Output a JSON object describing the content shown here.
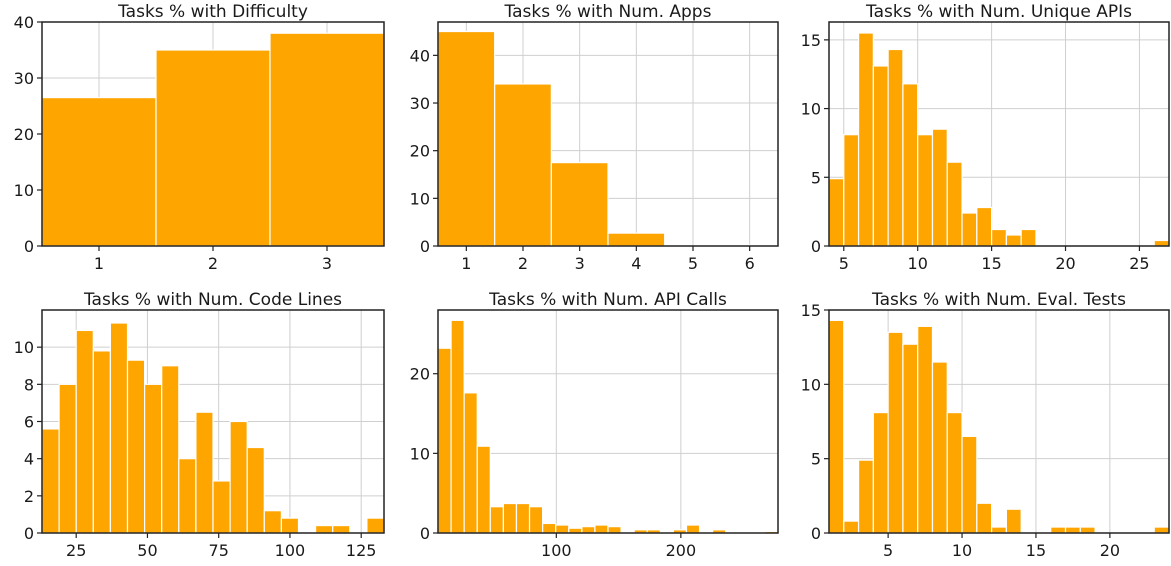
{
  "figure": {
    "bar_color": "#FFA500",
    "bar_edge_color": "#ffffff",
    "grid": true,
    "layout": "2x3"
  },
  "chart_data": [
    {
      "type": "bar",
      "title": "Tasks % with Difficulty",
      "bins": [
        {
          "x0": 0.5,
          "x1": 1.5,
          "y": 26.5
        },
        {
          "x0": 1.5,
          "x1": 2.5,
          "y": 35.0
        },
        {
          "x0": 2.5,
          "x1": 3.5,
          "y": 38.0
        }
      ],
      "xlim": [
        0.5,
        3.5
      ],
      "ylim": [
        0,
        40
      ],
      "xticks": [
        1,
        2,
        3
      ],
      "yticks": [
        0,
        10,
        20,
        30,
        40
      ],
      "xlabel": "",
      "ylabel": ""
    },
    {
      "type": "bar",
      "title": "Tasks % with Num. Apps",
      "bins": [
        {
          "x0": 0.5,
          "x1": 1.5,
          "y": 45.0
        },
        {
          "x0": 1.5,
          "x1": 2.5,
          "y": 34.0
        },
        {
          "x0": 2.5,
          "x1": 3.5,
          "y": 17.5
        },
        {
          "x0": 3.5,
          "x1": 4.5,
          "y": 2.7
        },
        {
          "x0": 4.5,
          "x1": 5.5,
          "y": 0
        },
        {
          "x0": 5.5,
          "x1": 6.5,
          "y": 0.2
        }
      ],
      "xlim": [
        0.5,
        6.5
      ],
      "ylim": [
        0,
        47
      ],
      "xticks": [
        1,
        2,
        3,
        4,
        5,
        6
      ],
      "yticks": [
        0,
        10,
        20,
        30,
        40
      ],
      "xlabel": "",
      "ylabel": ""
    },
    {
      "type": "bar",
      "title": "Tasks % with Num. Unique APIs",
      "bins": [
        {
          "x0": 4.0,
          "x1": 5.0,
          "y": 4.9
        },
        {
          "x0": 5.0,
          "x1": 6.0,
          "y": 8.1
        },
        {
          "x0": 6.0,
          "x1": 7.0,
          "y": 15.5
        },
        {
          "x0": 7.0,
          "x1": 8.0,
          "y": 13.1
        },
        {
          "x0": 8.0,
          "x1": 9.0,
          "y": 14.3
        },
        {
          "x0": 9.0,
          "x1": 10.0,
          "y": 11.8
        },
        {
          "x0": 10.0,
          "x1": 11.0,
          "y": 8.1
        },
        {
          "x0": 11.0,
          "x1": 12.0,
          "y": 8.5
        },
        {
          "x0": 12.0,
          "x1": 13.0,
          "y": 6.1
        },
        {
          "x0": 13.0,
          "x1": 14.0,
          "y": 2.4
        },
        {
          "x0": 14.0,
          "x1": 15.0,
          "y": 2.8
        },
        {
          "x0": 15.0,
          "x1": 16.0,
          "y": 1.2
        },
        {
          "x0": 16.0,
          "x1": 17.0,
          "y": 0.8
        },
        {
          "x0": 17.0,
          "x1": 18.0,
          "y": 1.2
        },
        {
          "x0": 26.0,
          "x1": 27.0,
          "y": 0.4
        }
      ],
      "xlim": [
        4.0,
        27.0
      ],
      "ylim": [
        0,
        16.3
      ],
      "xticks": [
        5,
        10,
        15,
        20,
        25
      ],
      "yticks": [
        0,
        5,
        10,
        15
      ],
      "xlabel": "",
      "ylabel": ""
    },
    {
      "type": "bar",
      "title": "Tasks % with Num. Code Lines",
      "bins": [
        {
          "x0": 13.0,
          "x1": 19.0,
          "y": 5.6
        },
        {
          "x0": 19.0,
          "x1": 25.0,
          "y": 8.0
        },
        {
          "x0": 25.0,
          "x1": 31.0,
          "y": 10.9
        },
        {
          "x0": 31.0,
          "x1": 37.0,
          "y": 9.8
        },
        {
          "x0": 37.0,
          "x1": 43.0,
          "y": 11.3
        },
        {
          "x0": 43.0,
          "x1": 49.0,
          "y": 9.3
        },
        {
          "x0": 49.0,
          "x1": 55.0,
          "y": 8.0
        },
        {
          "x0": 55.0,
          "x1": 61.0,
          "y": 9.0
        },
        {
          "x0": 61.0,
          "x1": 67.0,
          "y": 4.0
        },
        {
          "x0": 67.0,
          "x1": 73.0,
          "y": 6.5
        },
        {
          "x0": 73.0,
          "x1": 79.0,
          "y": 2.8
        },
        {
          "x0": 79.0,
          "x1": 85.0,
          "y": 6.0
        },
        {
          "x0": 85.0,
          "x1": 91.0,
          "y": 4.6
        },
        {
          "x0": 91.0,
          "x1": 97.0,
          "y": 1.2
        },
        {
          "x0": 97.0,
          "x1": 103.0,
          "y": 0.8
        },
        {
          "x0": 109.0,
          "x1": 115.0,
          "y": 0.4
        },
        {
          "x0": 115.0,
          "x1": 121.0,
          "y": 0.4
        },
        {
          "x0": 127.0,
          "x1": 133.0,
          "y": 0.8
        }
      ],
      "xlim": [
        13.0,
        133.0
      ],
      "ylim": [
        0,
        12.0
      ],
      "xticks": [
        25,
        50,
        75,
        100,
        125
      ],
      "yticks": [
        0,
        2,
        4,
        6,
        8,
        10
      ],
      "xlabel": "",
      "ylabel": ""
    },
    {
      "type": "bar",
      "title": "Tasks % with Num. API Calls",
      "bins": [
        {
          "x0": 5.0,
          "x1": 15.5,
          "y": 23.2
        },
        {
          "x0": 15.5,
          "x1": 26.0,
          "y": 26.7
        },
        {
          "x0": 26.0,
          "x1": 36.5,
          "y": 17.6
        },
        {
          "x0": 36.5,
          "x1": 47.0,
          "y": 10.9
        },
        {
          "x0": 47.0,
          "x1": 57.5,
          "y": 3.3
        },
        {
          "x0": 57.5,
          "x1": 68.0,
          "y": 3.7
        },
        {
          "x0": 68.0,
          "x1": 78.5,
          "y": 3.7
        },
        {
          "x0": 78.5,
          "x1": 89.0,
          "y": 3.3
        },
        {
          "x0": 89.0,
          "x1": 99.5,
          "y": 1.2
        },
        {
          "x0": 99.5,
          "x1": 110.0,
          "y": 1.0
        },
        {
          "x0": 110.0,
          "x1": 120.5,
          "y": 0.6
        },
        {
          "x0": 120.5,
          "x1": 131.0,
          "y": 0.8
        },
        {
          "x0": 131.0,
          "x1": 141.5,
          "y": 1.0
        },
        {
          "x0": 141.5,
          "x1": 152.0,
          "y": 0.8
        },
        {
          "x0": 162.5,
          "x1": 173.0,
          "y": 0.4
        },
        {
          "x0": 173.0,
          "x1": 183.5,
          "y": 0.4
        },
        {
          "x0": 194.0,
          "x1": 204.5,
          "y": 0.4
        },
        {
          "x0": 204.5,
          "x1": 215.0,
          "y": 1.0
        },
        {
          "x0": 225.5,
          "x1": 236.0,
          "y": 0.4
        },
        {
          "x0": 267.5,
          "x1": 278.0,
          "y": 0.2
        }
      ],
      "xlim": [
        5.0,
        278.0
      ],
      "ylim": [
        0,
        28.0
      ],
      "xticks": [
        100,
        200
      ],
      "yticks": [
        0,
        10,
        20
      ],
      "xlabel": "",
      "ylabel": ""
    },
    {
      "type": "bar",
      "title": "Tasks % with Num. Eval. Tests",
      "bins": [
        {
          "x0": 1.0,
          "x1": 2.0,
          "y": 14.3
        },
        {
          "x0": 2.0,
          "x1": 3.0,
          "y": 0.8
        },
        {
          "x0": 3.0,
          "x1": 4.0,
          "y": 4.9
        },
        {
          "x0": 4.0,
          "x1": 5.0,
          "y": 8.1
        },
        {
          "x0": 5.0,
          "x1": 6.0,
          "y": 13.5
        },
        {
          "x0": 6.0,
          "x1": 7.0,
          "y": 12.7
        },
        {
          "x0": 7.0,
          "x1": 8.0,
          "y": 13.9
        },
        {
          "x0": 8.0,
          "x1": 9.0,
          "y": 11.5
        },
        {
          "x0": 9.0,
          "x1": 10.0,
          "y": 8.1
        },
        {
          "x0": 10.0,
          "x1": 11.0,
          "y": 6.5
        },
        {
          "x0": 11.0,
          "x1": 12.0,
          "y": 2.0
        },
        {
          "x0": 12.0,
          "x1": 13.0,
          "y": 0.4
        },
        {
          "x0": 13.0,
          "x1": 14.0,
          "y": 1.6
        },
        {
          "x0": 16.0,
          "x1": 17.0,
          "y": 0.4
        },
        {
          "x0": 17.0,
          "x1": 18.0,
          "y": 0.4
        },
        {
          "x0": 18.0,
          "x1": 19.0,
          "y": 0.4
        },
        {
          "x0": 23.0,
          "x1": 24.0,
          "y": 0.4
        }
      ],
      "xlim": [
        1.0,
        24.0
      ],
      "ylim": [
        0,
        15.0
      ],
      "xticks": [
        5,
        10,
        15,
        20
      ],
      "yticks": [
        0,
        5,
        10,
        15
      ],
      "xlabel": "",
      "ylabel": ""
    }
  ]
}
